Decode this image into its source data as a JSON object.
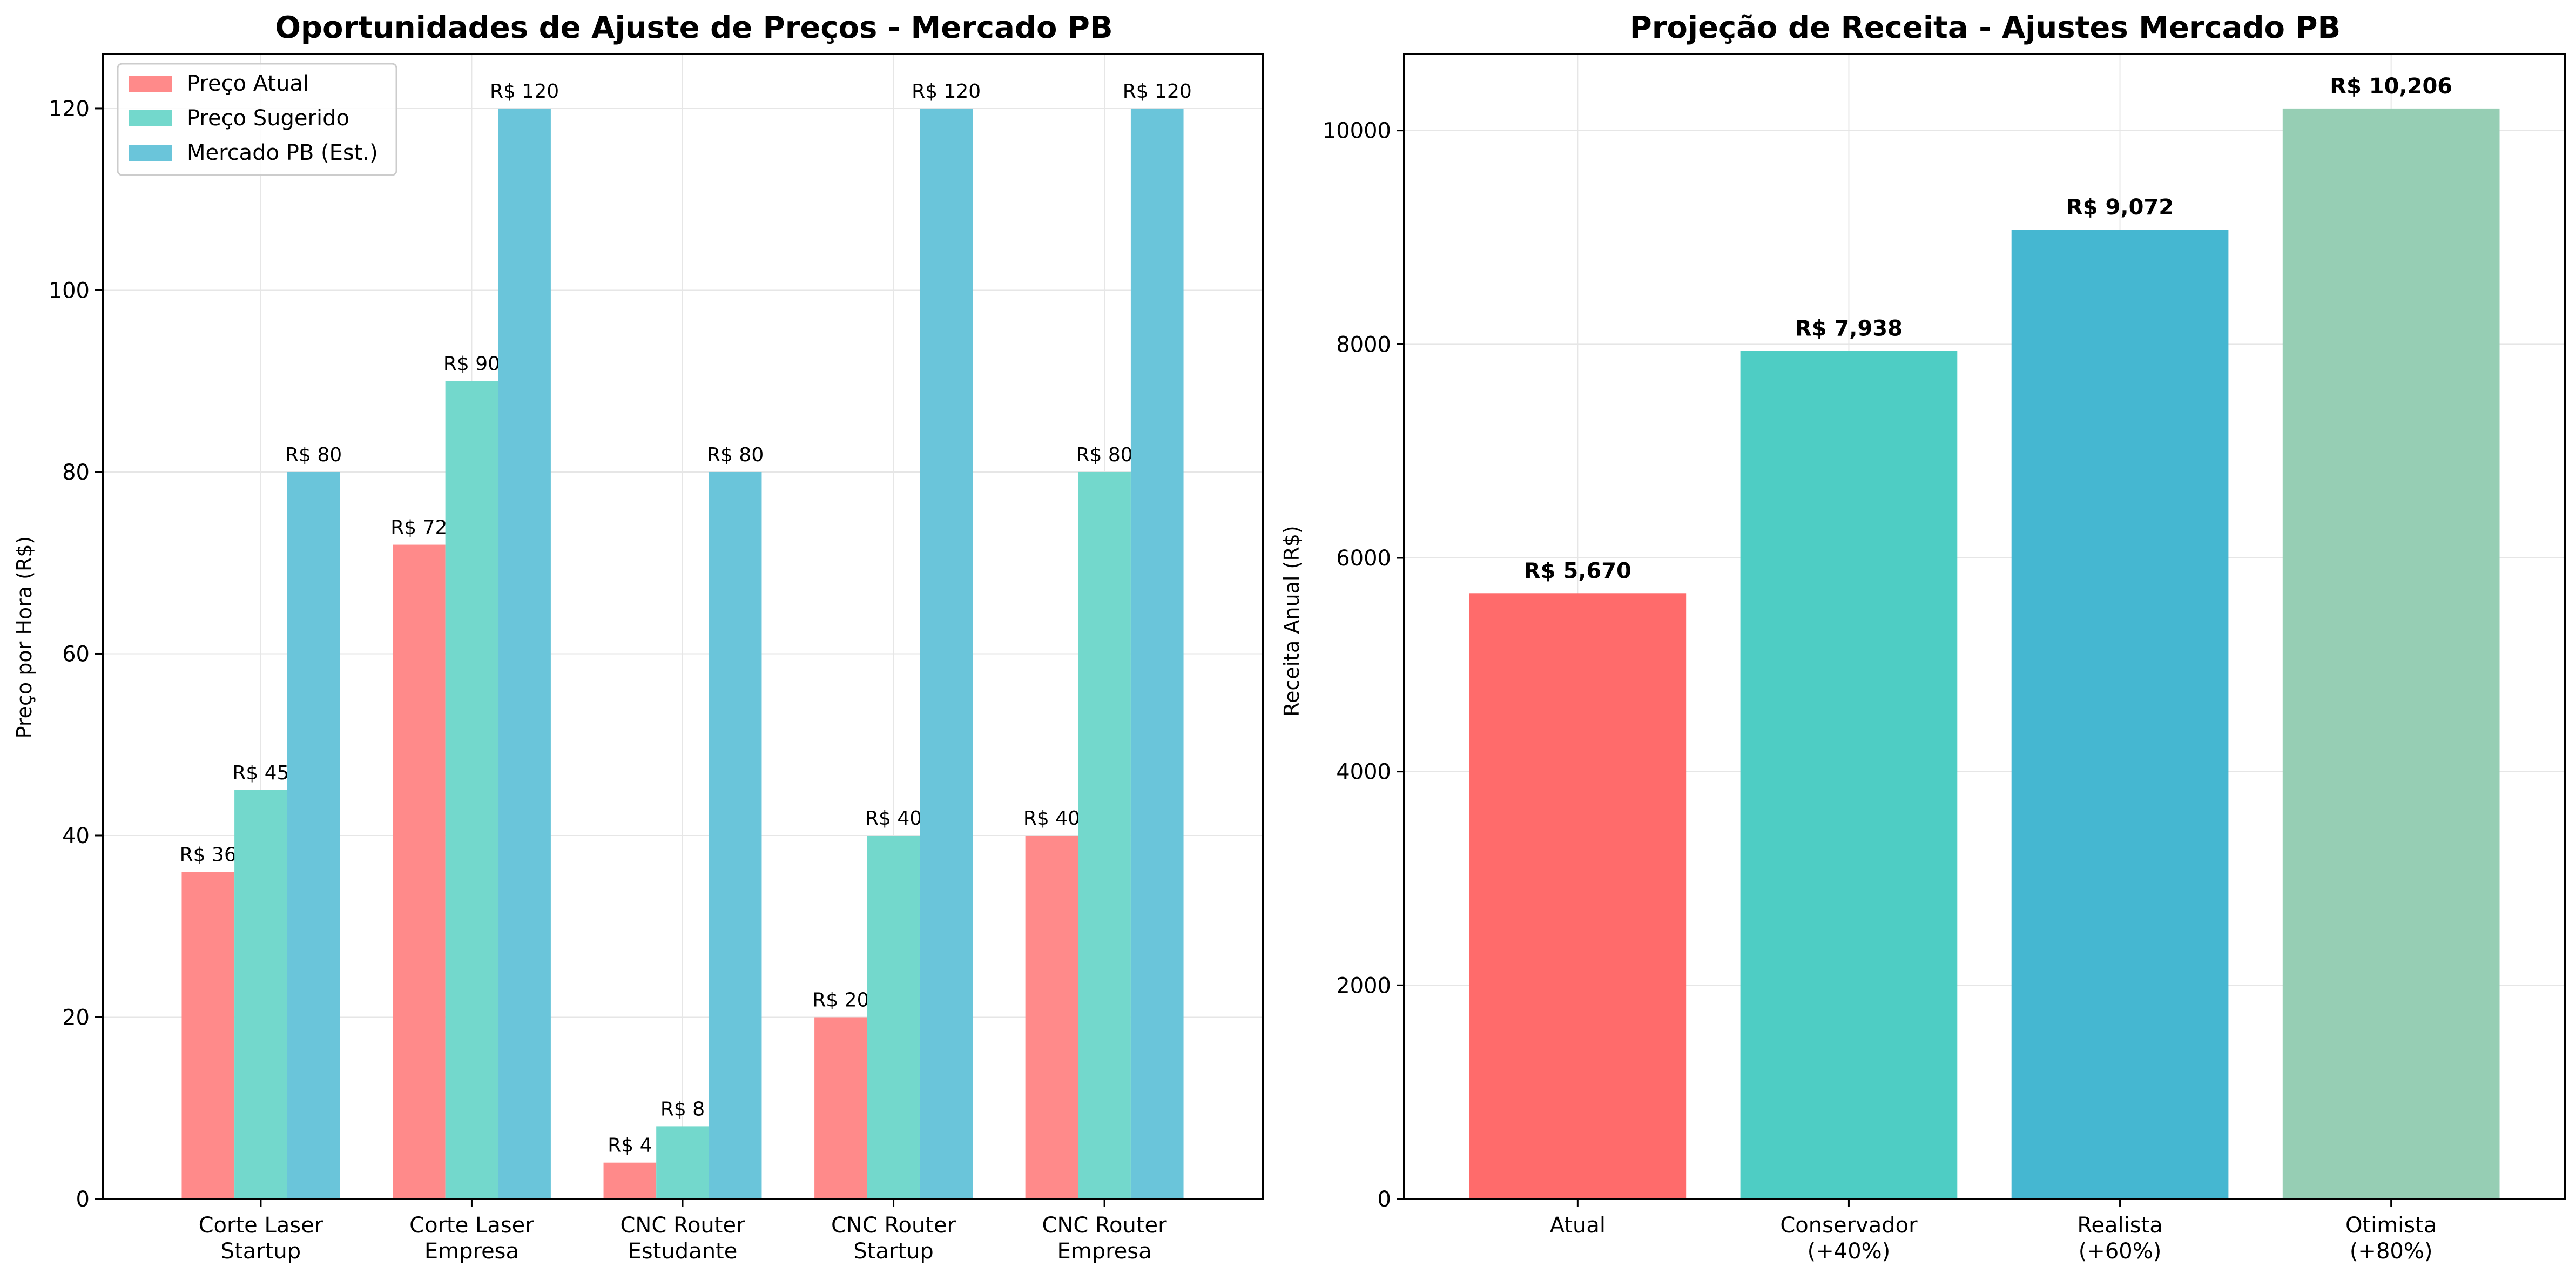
{
  "chart_data": [
    {
      "type": "bar",
      "title": "Oportunidades de Ajuste de Preços - Mercado PB",
      "xlabel": "",
      "ylabel": "Preço por Hora (R$)",
      "ylim": [
        0,
        126
      ],
      "yticks": [
        0,
        20,
        40,
        60,
        80,
        100,
        120
      ],
      "grid": true,
      "legend_position": "top-left",
      "categories": [
        [
          "Corte Laser",
          "Startup"
        ],
        [
          "Corte Laser",
          "Empresa"
        ],
        [
          "CNC Router",
          "Estudante"
        ],
        [
          "CNC Router",
          "Startup"
        ],
        [
          "CNC Router",
          "Empresa"
        ]
      ],
      "series": [
        {
          "name": "Preço Atual",
          "color": "#ff8a8a",
          "values": [
            36,
            72,
            4,
            20,
            40
          ],
          "labels": [
            "R$ 36",
            "R$ 72",
            "R$ 4",
            "R$ 20",
            "R$ 40"
          ]
        },
        {
          "name": "Preço Sugerido",
          "color": "#73d8cc",
          "values": [
            45,
            90,
            8,
            40,
            80
          ],
          "labels": [
            "R$ 45",
            "R$ 90",
            "R$ 8",
            "R$ 40",
            "R$ 80"
          ]
        },
        {
          "name": "Mercado PB (Est.)",
          "color": "#6ac5da",
          "values": [
            80,
            120,
            80,
            120,
            120
          ],
          "labels": [
            "R$ 80",
            "R$ 120",
            "R$ 80",
            "R$ 120",
            "R$ 120"
          ]
        }
      ]
    },
    {
      "type": "bar",
      "title": "Projeção de Receita - Ajustes Mercado PB",
      "xlabel": "",
      "ylabel": "Receita Anual (R$)",
      "ylim": [
        0,
        10716
      ],
      "yticks": [
        0,
        2000,
        4000,
        6000,
        8000,
        10000
      ],
      "grid": true,
      "categories": [
        [
          "Atual"
        ],
        [
          "Conservador",
          "(+40%)"
        ],
        [
          "Realista",
          "(+60%)"
        ],
        [
          "Otimista",
          "(+80%)"
        ]
      ],
      "values": [
        5670,
        7938,
        9072,
        10206
      ],
      "labels": [
        "R$ 5,670",
        "R$ 7,938",
        "R$ 9,072",
        "R$ 10,206"
      ],
      "colors": [
        "#ff6b6b",
        "#4ecdc4",
        "#45b7d1",
        "#96ceb4"
      ]
    }
  ]
}
